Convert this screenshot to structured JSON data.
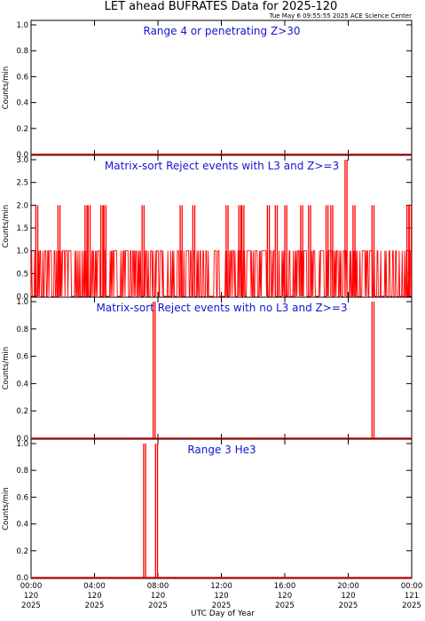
{
  "header": {
    "title": "LET ahead BUFRATES Data for 2025-120",
    "timestamp": "Tue May  6 09:55:55 2025 ACE Science Center"
  },
  "colors": {
    "data": "#ff0000",
    "label": "#1515d0",
    "axis": "#000000"
  },
  "chart_data": {
    "type": "line",
    "xlabel": "UTC Day of Year",
    "xlim_hours": [
      0,
      24
    ],
    "x_ticks": [
      {
        "hour": 0,
        "time": "00:00",
        "doy": "120",
        "year": "2025"
      },
      {
        "hour": 4,
        "time": "04:00",
        "doy": "120",
        "year": "2025"
      },
      {
        "hour": 8,
        "time": "08:00",
        "doy": "120",
        "year": "2025"
      },
      {
        "hour": 12,
        "time": "12:00",
        "doy": "120",
        "year": "2025"
      },
      {
        "hour": 16,
        "time": "16:00",
        "doy": "120",
        "year": "2025"
      },
      {
        "hour": 20,
        "time": "20:00",
        "doy": "120",
        "year": "2025"
      },
      {
        "hour": 24,
        "time": "00:00",
        "doy": "121",
        "year": "2025"
      }
    ],
    "panels": [
      {
        "label": "Range 4 or  penetrating Z>30",
        "ylabel": "Counts/min",
        "ylim": [
          0,
          1
        ],
        "yticks": [
          "0.0",
          "0.2",
          "0.4",
          "0.6",
          "0.8",
          "1.0"
        ],
        "ytick_values": [
          0,
          0.2,
          0.4,
          0.6,
          0.8,
          1.0
        ],
        "background": 0,
        "spikes": []
      },
      {
        "label": "Matrix-sort Reject events with L3 and Z>=3",
        "ylabel": "Counts/min",
        "ylim": [
          0,
          3
        ],
        "yticks": [
          "0.0",
          "0.5",
          "1.0",
          "1.5",
          "2.0",
          "2.5",
          "3.0"
        ],
        "ytick_values": [
          0,
          0.5,
          1.0,
          1.5,
          2.0,
          2.5,
          3.0
        ],
        "noise": true,
        "spikes": [
          {
            "x": 0.3,
            "y": 2
          },
          {
            "x": 1.7,
            "y": 2
          },
          {
            "x": 3.4,
            "y": 2
          },
          {
            "x": 3.6,
            "y": 2
          },
          {
            "x": 4.4,
            "y": 2
          },
          {
            "x": 4.6,
            "y": 2
          },
          {
            "x": 7.0,
            "y": 2
          },
          {
            "x": 9.4,
            "y": 2
          },
          {
            "x": 10.2,
            "y": 2
          },
          {
            "x": 12.3,
            "y": 2
          },
          {
            "x": 13.1,
            "y": 2
          },
          {
            "x": 13.3,
            "y": 2
          },
          {
            "x": 14.9,
            "y": 2
          },
          {
            "x": 15.4,
            "y": 2
          },
          {
            "x": 16.0,
            "y": 2
          },
          {
            "x": 17.0,
            "y": 2
          },
          {
            "x": 17.5,
            "y": 2
          },
          {
            "x": 18.6,
            "y": 2
          },
          {
            "x": 18.9,
            "y": 2
          },
          {
            "x": 19.8,
            "y": 3
          },
          {
            "x": 20.3,
            "y": 2
          },
          {
            "x": 21.5,
            "y": 2
          },
          {
            "x": 23.7,
            "y": 2
          },
          {
            "x": 23.85,
            "y": 2
          }
        ]
      },
      {
        "label": "Matrix-sort Reject events with no L3 and Z>=3",
        "ylabel": "Counts/min",
        "ylim": [
          0,
          1
        ],
        "yticks": [
          "0.0",
          "0.2",
          "0.4",
          "0.6",
          "0.8",
          "1.0"
        ],
        "ytick_values": [
          0,
          0.2,
          0.4,
          0.6,
          0.8,
          1.0
        ],
        "background": 0,
        "spikes": [
          {
            "x": 7.7,
            "y": 1
          },
          {
            "x": 21.5,
            "y": 1
          }
        ]
      },
      {
        "label": "Range 3 He3",
        "ylabel": "Counts/min",
        "ylim": [
          0,
          1
        ],
        "yticks": [
          "0.0",
          "0.2",
          "0.4",
          "0.6",
          "0.8",
          "1.0"
        ],
        "ytick_values": [
          0,
          0.2,
          0.4,
          0.6,
          0.8,
          1.0
        ],
        "background": 0,
        "spikes": [
          {
            "x": 7.1,
            "y": 1
          },
          {
            "x": 7.85,
            "y": 1
          }
        ]
      }
    ]
  }
}
